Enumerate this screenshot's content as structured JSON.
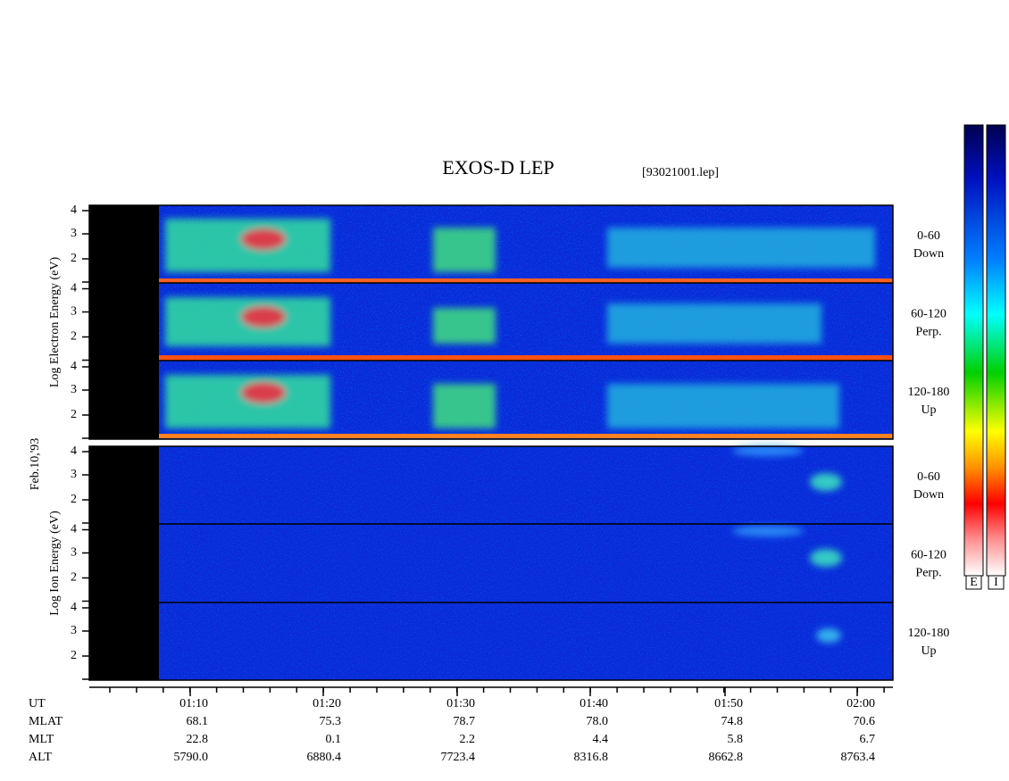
{
  "title": "EXOS-D LEP",
  "file": "[93021001.lep]",
  "date": "Feb.10,'93",
  "electron_panel": {
    "label": "Log Electron Energy (eV)",
    "y_ticks": [
      4,
      3,
      2
    ],
    "channels": [
      {
        "range": "0-60",
        "direction": "Down"
      },
      {
        "range": "60-120",
        "direction": "Perp."
      },
      {
        "range": "120-180",
        "direction": "Up"
      }
    ]
  },
  "ion_panel": {
    "label": "Log Ion Energy (eV)",
    "y_ticks": [
      4,
      3,
      2
    ],
    "channels": [
      {
        "range": "0-60",
        "direction": "Down"
      },
      {
        "range": "60-120",
        "direction": "Perp."
      },
      {
        "range": "120-180",
        "direction": "Up"
      }
    ]
  },
  "color_bars": [
    "E",
    "I"
  ],
  "ephemeris": [
    {
      "name": "UT",
      "values": [
        "01:10",
        "01:20",
        "01:30",
        "01:40",
        "01:50",
        "02:00"
      ]
    },
    {
      "name": "MLAT",
      "values": [
        "68.1",
        "75.3",
        "78.7",
        "78.0",
        "74.8",
        "70.6"
      ]
    },
    {
      "name": "MLT",
      "values": [
        "22.8",
        "0.1",
        "2.2",
        "4.4",
        "5.8",
        "6.7"
      ]
    },
    {
      "name": "ALT",
      "values": [
        "5790.0",
        "6880.4",
        "7723.4",
        "8316.8",
        "8662.8",
        "8763.4"
      ]
    }
  ]
}
